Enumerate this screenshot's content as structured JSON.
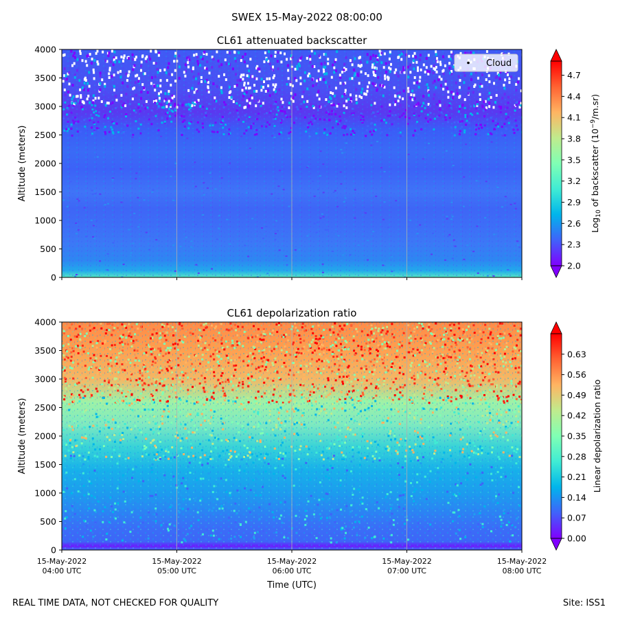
{
  "suptitle": "SWEX 15-May-2022 08:00:00",
  "footer": {
    "left": "REAL TIME DATA, NOT CHECKED FOR QUALITY",
    "right": "Site: ISS1"
  },
  "colors": {
    "rainbow": [
      "#8000ff",
      "#4062fa",
      "#00b5eb",
      "#40ecd4",
      "#80ffb4",
      "#c0eb8d",
      "#ffb462",
      "#ff6232",
      "#ff0000"
    ],
    "cloud_marker": "#000000",
    "gridline": "#b0b0b0"
  },
  "chart_data": [
    {
      "type": "heatmap",
      "title": "CL61 attenuated backscatter",
      "ylabel": "Altitude (meters)",
      "xlabel": "",
      "ylim": [
        0,
        4000
      ],
      "yticks": [
        "0",
        "500",
        "1000",
        "1500",
        "2000",
        "2500",
        "3000",
        "3500",
        "4000"
      ],
      "x_range_utc": [
        "15-May-2022 04:00",
        "15-May-2022 08:00"
      ],
      "vertical_gridlines": true,
      "legend": {
        "position": "upper-right",
        "entries": [
          {
            "label": "Cloud",
            "marker": "point"
          }
        ]
      },
      "colorbar": {
        "label_prefix": "Log",
        "label_sub": "10",
        "label_mid": " of backscatter (10",
        "label_sup": "−9",
        "label_suffix": "/m.sr)",
        "range": [
          2.0,
          4.9
        ],
        "ticks": [
          "2.0",
          "2.3",
          "2.6",
          "2.9",
          "3.2",
          "3.5",
          "3.8",
          "4.1",
          "4.4",
          "4.7"
        ],
        "extend": "both"
      }
    },
    {
      "type": "heatmap",
      "title": "CL61 depolarization ratio",
      "ylabel": "Altitude (meters)",
      "xlabel": "Time (UTC)",
      "ylim": [
        0,
        4000
      ],
      "yticks": [
        "0",
        "500",
        "1000",
        "1500",
        "2000",
        "2500",
        "3000",
        "3500",
        "4000"
      ],
      "xticks": [
        {
          "date": "15-May-2022",
          "time": "04:00 UTC"
        },
        {
          "date": "15-May-2022",
          "time": "05:00 UTC"
        },
        {
          "date": "15-May-2022",
          "time": "06:00 UTC"
        },
        {
          "date": "15-May-2022",
          "time": "07:00 UTC"
        },
        {
          "date": "15-May-2022",
          "time": "08:00 UTC"
        }
      ],
      "vertical_gridlines": true,
      "colorbar": {
        "label": "Linear depolarization ratio",
        "range": [
          0.0,
          0.7
        ],
        "ticks": [
          "0.00",
          "0.07",
          "0.14",
          "0.21",
          "0.28",
          "0.35",
          "0.42",
          "0.49",
          "0.56",
          "0.63"
        ],
        "extend": "both"
      }
    }
  ]
}
